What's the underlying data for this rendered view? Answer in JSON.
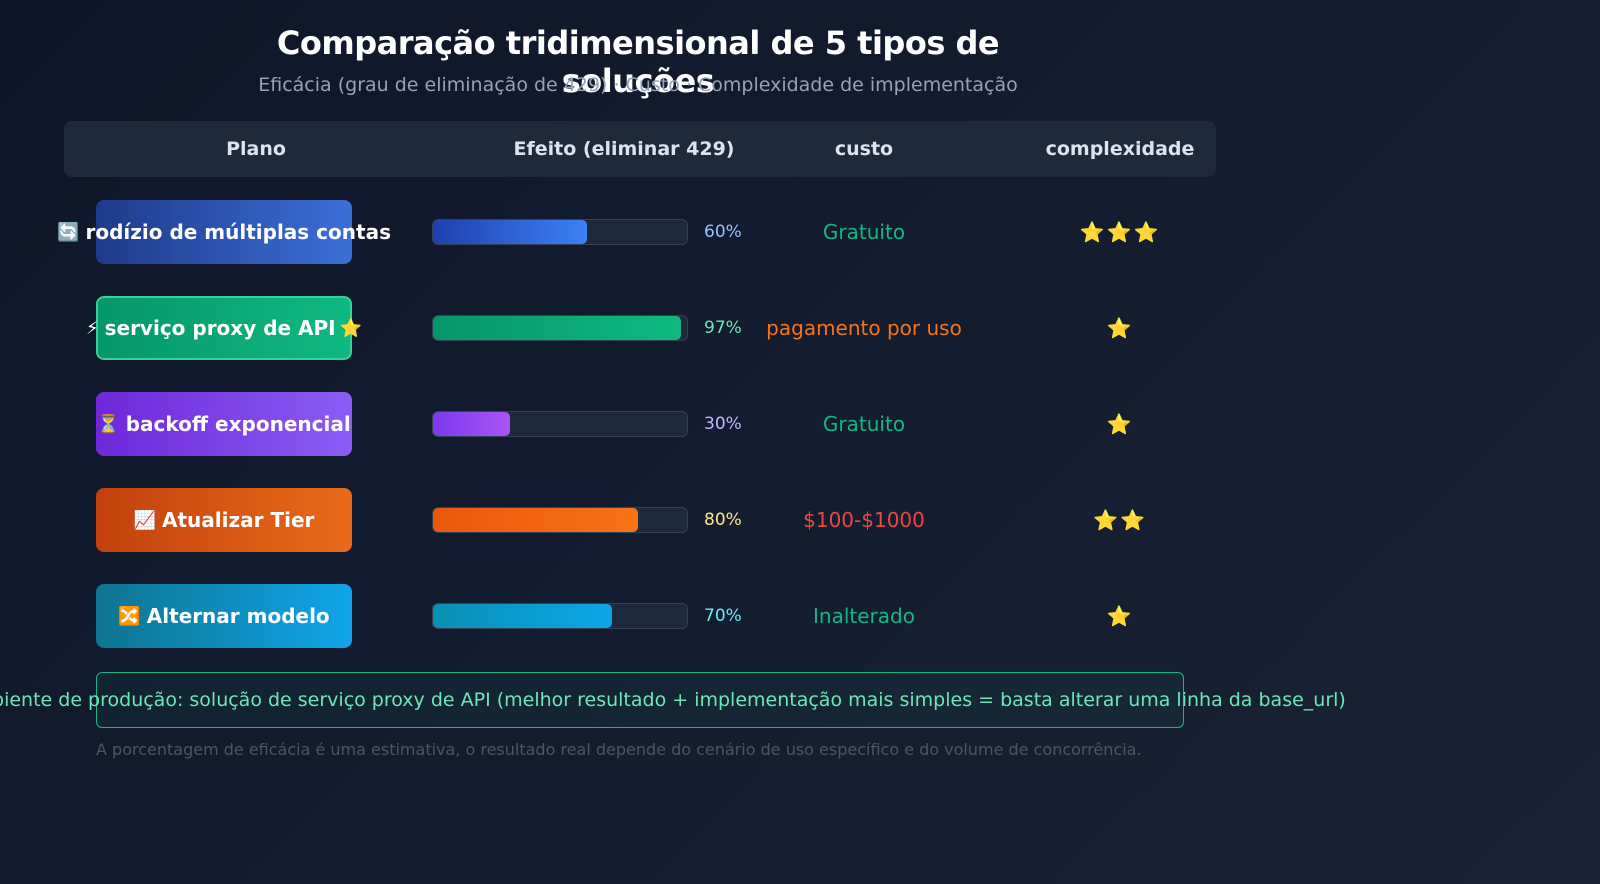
{
  "chart_data": {
    "type": "table",
    "title": "Comparação tridimensional de 5 tipos de soluções",
    "subtitle": "Eficácia (grau de eliminação de 429) · Custo · Complexidade de implementação",
    "columns": [
      "Plano",
      "Efeito (eliminar 429)",
      "custo",
      "complexidade"
    ],
    "rows": [
      {
        "icon": "🔄",
        "name": "rodízio de múltiplas contas",
        "suffix_icon": "",
        "effect": 60,
        "effect_label": "60%",
        "cost": "Gratuito",
        "complexity": 3,
        "complexity_label": "⭐⭐⭐",
        "pill_from": "#1e3a8a",
        "pill_to": "#3b6fd8",
        "bar_from": "#1e40af",
        "bar_to": "#3b82f6",
        "pct_color": "#93c5fd",
        "cost_color": "#10b981",
        "highlight": false
      },
      {
        "icon": "⚡",
        "name": "serviço proxy de API",
        "suffix_icon": "⭐",
        "effect": 97,
        "effect_label": "97%",
        "cost": "pagamento por uso",
        "complexity": 1,
        "complexity_label": "⭐",
        "pill_from": "#059669",
        "pill_to": "#10b981",
        "bar_from": "#059669",
        "bar_to": "#10b981",
        "pct_color": "#6ee7b7",
        "cost_color": "#f97316",
        "highlight": true
      },
      {
        "icon": "⏳",
        "name": "backoff exponencial",
        "suffix_icon": "",
        "effect": 30,
        "effect_label": "30%",
        "cost": "Gratuito",
        "complexity": 1,
        "complexity_label": "⭐",
        "pill_from": "#6d28d9",
        "pill_to": "#8b5cf6",
        "bar_from": "#7c3aed",
        "bar_to": "#a855f7",
        "pct_color": "#c4b5fd",
        "cost_color": "#10b981",
        "highlight": false
      },
      {
        "icon": "📈",
        "name": "Atualizar Tier",
        "suffix_icon": "",
        "effect": 80,
        "effect_label": "80%",
        "cost": "$100-$1000",
        "complexity": 2,
        "complexity_label": "⭐⭐",
        "pill_from": "#c2410c",
        "pill_to": "#ea6a1a",
        "bar_from": "#ea580c",
        "bar_to": "#f97316",
        "pct_color": "#fde68a",
        "cost_color": "#ef4444",
        "highlight": false
      },
      {
        "icon": "🔀",
        "name": "Alternar modelo",
        "suffix_icon": "",
        "effect": 70,
        "effect_label": "70%",
        "cost": "Inalterado",
        "complexity": 1,
        "complexity_label": "⭐",
        "pill_from": "#0e7490",
        "pill_to": "#0ea5e9",
        "bar_from": "#0891b2",
        "bar_to": "#0ea5e9",
        "pct_color": "#67e8f9",
        "cost_color": "#10b981",
        "highlight": false
      }
    ],
    "recommendation": "o para ambiente de produção: solução de serviço proxy de API (melhor resultado + implementação mais simples = basta alterar uma linha da base_url)",
    "footnote": "A porcentagem de eficácia é uma estimativa, o resultado real depende do cenário de uso específico e do volume de concorrência."
  }
}
